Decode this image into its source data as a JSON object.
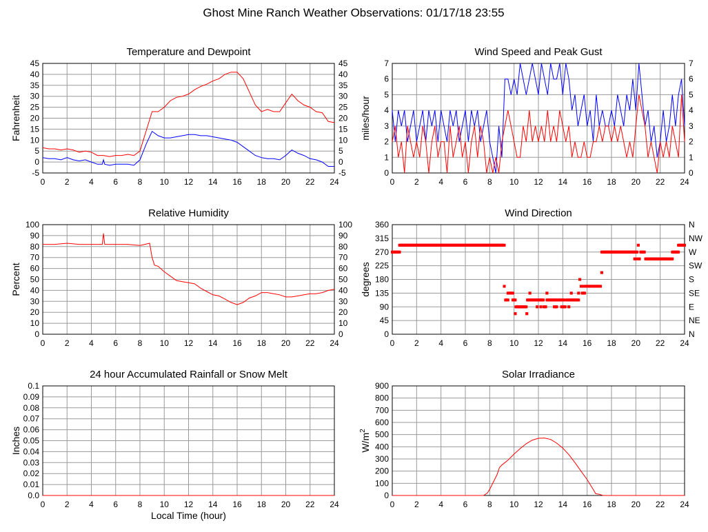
{
  "title": "Ghost Mine Ranch Weather Observations: 01/17/18 23:55",
  "chart_data": [
    {
      "id": "temp",
      "type": "line",
      "title": "Temperature and Dewpoint",
      "ylabel": "Fahrenheit",
      "xlabel": "",
      "xlim": [
        0,
        24
      ],
      "xticks": [
        0,
        2,
        4,
        6,
        8,
        10,
        12,
        14,
        16,
        18,
        20,
        22,
        24
      ],
      "ylim": [
        -5,
        45
      ],
      "yticks": [
        -5,
        0,
        5,
        10,
        15,
        20,
        25,
        30,
        35,
        40,
        45
      ],
      "right_ticks": [
        "-5",
        "0",
        "5",
        "10",
        "15",
        "20",
        "25",
        "30",
        "35",
        "40",
        "45"
      ],
      "grid": true,
      "series": [
        {
          "name": "Temperature",
          "color": "#ff0000",
          "x": [
            0,
            0.5,
            1,
            1.5,
            2,
            2.5,
            3,
            3.5,
            4,
            4.5,
            5,
            5.5,
            6,
            6.5,
            7,
            7.5,
            8,
            8.5,
            9,
            9.5,
            10,
            10.5,
            11,
            11.5,
            12,
            12.5,
            13,
            13.5,
            14,
            14.5,
            15,
            15.5,
            16,
            16.5,
            17,
            17.5,
            18,
            18.5,
            19,
            19.5,
            20,
            20.5,
            21,
            21.5,
            22,
            22.5,
            23,
            23.5,
            24
          ],
          "y": [
            6.5,
            6,
            6,
            5.5,
            6,
            5.5,
            4.5,
            5,
            4.5,
            3,
            3,
            2.5,
            3,
            3,
            3.5,
            3,
            5,
            14,
            23,
            23,
            25,
            28,
            29.5,
            30,
            31,
            33,
            34.5,
            35.5,
            37,
            38,
            40,
            41,
            41,
            38,
            32,
            26,
            23,
            24,
            23,
            23,
            27,
            31,
            28,
            26,
            25,
            23,
            22.5,
            18.5,
            18
          ]
        },
        {
          "name": "Dewpoint",
          "color": "#0000ff",
          "x": [
            0,
            0.5,
            1,
            1.5,
            2,
            2.5,
            3,
            3.5,
            4,
            4.5,
            4.9,
            5,
            5.1,
            5.5,
            6,
            6.5,
            7,
            7.5,
            8,
            8.5,
            9,
            9.5,
            10,
            10.5,
            11,
            11.5,
            12,
            12.5,
            13,
            13.5,
            14,
            14.5,
            15,
            15.5,
            16,
            16.5,
            17,
            17.5,
            18,
            18.5,
            19,
            19.5,
            20,
            20.5,
            21,
            21.5,
            22,
            22.5,
            23,
            23.5,
            24
          ],
          "y": [
            2,
            1.5,
            1.5,
            1,
            2,
            1,
            0.5,
            1,
            0,
            -1,
            -1,
            1,
            -1,
            -1.5,
            -1,
            -1,
            -1,
            -1.5,
            1,
            8,
            14,
            12,
            11,
            11,
            11.5,
            12,
            12.5,
            12.5,
            12,
            12,
            11.5,
            11,
            10.5,
            10,
            9,
            7,
            5,
            3,
            2,
            1.5,
            1.5,
            1,
            3,
            5.5,
            4,
            3,
            1.5,
            1,
            0,
            -2,
            -2
          ]
        }
      ]
    },
    {
      "id": "wind",
      "type": "line",
      "title": "Wind Speed and Peak Gust",
      "ylabel": "miles/hour",
      "xlabel": "",
      "xlim": [
        0,
        24
      ],
      "xticks": [
        0,
        2,
        4,
        6,
        8,
        10,
        12,
        14,
        16,
        18,
        20,
        22,
        24
      ],
      "ylim": [
        0,
        7
      ],
      "yticks": [
        0,
        1,
        2,
        3,
        4,
        5,
        6,
        7
      ],
      "right_ticks": [
        "0",
        "1",
        "2",
        "3",
        "4",
        "5",
        "6",
        "7"
      ],
      "grid": true,
      "x_step": 0.25,
      "series": [
        {
          "name": "Peak Gust",
          "color": "#0000ff",
          "y": [
            4,
            2,
            4,
            3,
            4,
            2,
            3,
            4,
            2,
            3,
            4,
            2,
            4,
            3,
            4,
            2,
            4,
            3,
            2,
            4,
            3,
            4,
            2,
            3,
            4,
            2,
            4,
            3,
            4,
            2,
            3,
            4,
            2,
            1,
            0,
            3,
            1,
            6,
            6,
            5,
            6,
            5,
            7,
            6,
            5,
            6,
            7,
            6,
            5,
            7,
            6,
            5,
            7,
            6,
            6,
            7,
            5,
            7,
            6,
            4,
            5,
            3,
            4,
            5,
            3,
            4,
            2,
            5,
            3,
            4,
            3,
            3,
            4,
            3,
            5,
            4,
            3,
            5,
            4,
            6,
            4,
            7,
            5,
            3,
            4,
            2,
            3,
            1,
            2,
            4,
            2,
            3,
            5,
            3,
            5,
            6,
            3
          ]
        },
        {
          "name": "Wind Speed",
          "color": "#ff0000",
          "y": [
            2,
            3,
            1,
            2,
            0,
            3,
            2,
            1,
            2,
            1,
            3,
            2,
            0,
            2,
            3,
            1,
            2,
            2,
            0,
            3,
            1,
            2,
            3,
            1,
            2,
            0,
            2,
            3,
            1,
            3,
            2,
            0,
            1,
            0,
            1,
            0,
            2,
            3,
            4,
            3,
            2,
            1,
            1,
            3,
            2,
            4,
            2,
            3,
            2,
            3,
            2,
            4,
            2,
            3,
            2,
            4,
            3,
            2,
            3,
            1,
            2,
            1,
            1,
            2,
            1,
            1,
            2,
            2,
            3,
            2,
            3,
            3,
            2,
            3,
            2,
            3,
            2,
            1,
            2,
            1,
            3,
            5,
            4,
            3,
            1,
            2,
            1,
            0,
            2,
            1,
            2,
            1,
            3,
            2,
            1,
            5,
            2
          ]
        }
      ]
    },
    {
      "id": "rh",
      "type": "line",
      "title": "Relative Humidity",
      "ylabel": "Percent",
      "xlabel": "",
      "xlim": [
        0,
        24
      ],
      "xticks": [
        0,
        2,
        4,
        6,
        8,
        10,
        12,
        14,
        16,
        18,
        20,
        22,
        24
      ],
      "ylim": [
        0,
        100
      ],
      "yticks": [
        0,
        10,
        20,
        30,
        40,
        50,
        60,
        70,
        80,
        90,
        100
      ],
      "right_ticks": [
        "0",
        "10",
        "20",
        "30",
        "40",
        "50",
        "60",
        "70",
        "80",
        "90",
        "100"
      ],
      "grid": true,
      "series": [
        {
          "name": "Relative Humidity",
          "color": "#ff0000",
          "x": [
            0,
            1,
            2,
            3,
            4,
            4.9,
            5,
            5.1,
            6,
            7,
            8,
            8.8,
            9,
            9.2,
            9.5,
            10,
            10.5,
            11,
            11.5,
            12,
            12.5,
            13,
            13.5,
            14,
            14.5,
            15,
            15.5,
            16,
            16.5,
            17,
            17.5,
            18,
            18.5,
            19,
            19.5,
            20,
            20.5,
            21,
            21.5,
            22,
            22.5,
            23,
            23.5,
            24
          ],
          "y": [
            82,
            82,
            83,
            82,
            82,
            82,
            92,
            82,
            82,
            82,
            81,
            83,
            70,
            63,
            62,
            57,
            53,
            49,
            48,
            47,
            46,
            42,
            39,
            36,
            35,
            32,
            29,
            27,
            29,
            33,
            35,
            38,
            38,
            37,
            36,
            34,
            34,
            35,
            36,
            37,
            37,
            38,
            40,
            41
          ]
        }
      ]
    },
    {
      "id": "dir",
      "type": "scatter",
      "title": "Wind Direction",
      "ylabel": "degrees",
      "xlabel": "",
      "xlim": [
        0,
        24
      ],
      "xticks": [
        0,
        2,
        4,
        6,
        8,
        10,
        12,
        14,
        16,
        18,
        20,
        22,
        24
      ],
      "ylim": [
        0,
        360
      ],
      "yticks": [
        0,
        45,
        90,
        135,
        180,
        225,
        270,
        315,
        360
      ],
      "right_ticks": [
        "N",
        "NE",
        "E",
        "SE",
        "S",
        "SW",
        "W",
        "NW",
        "N"
      ],
      "grid": true,
      "color": "#ff0000",
      "segments": [
        [
          0,
          0.6,
          270
        ],
        [
          0.6,
          9.2,
          292.5
        ],
        [
          9.2,
          9.2,
          157.5
        ],
        [
          9.3,
          9.5,
          112.5
        ],
        [
          9.5,
          9.9,
          135
        ],
        [
          9.9,
          10.1,
          112.5
        ],
        [
          10.1,
          10.1,
          67.5
        ],
        [
          10.15,
          11,
          90
        ],
        [
          11.05,
          11.05,
          67.5
        ],
        [
          11.1,
          12.4,
          112.5
        ],
        [
          11.3,
          11.3,
          135
        ],
        [
          11.9,
          11.9,
          90
        ],
        [
          12.2,
          12.2,
          90
        ],
        [
          12.45,
          12.6,
          90
        ],
        [
          12.7,
          12.7,
          135
        ],
        [
          12.7,
          13.5,
          112.5
        ],
        [
          13.3,
          13.5,
          90
        ],
        [
          13.6,
          14.1,
          112.5
        ],
        [
          13.9,
          14.2,
          90
        ],
        [
          14.3,
          15.3,
          112.5
        ],
        [
          14.5,
          14.5,
          90
        ],
        [
          14.7,
          14.7,
          135
        ],
        [
          15.3,
          15.3,
          135
        ],
        [
          15.4,
          15.4,
          180
        ],
        [
          15.5,
          15.6,
          157.5
        ],
        [
          15.6,
          15.8,
          135
        ],
        [
          15.8,
          17.1,
          157.5
        ],
        [
          17.2,
          17.2,
          202.5
        ],
        [
          17.2,
          20.1,
          270
        ],
        [
          19.9,
          20,
          247.5
        ],
        [
          20.2,
          20.2,
          292.5
        ],
        [
          20.2,
          20.3,
          247.5
        ],
        [
          20.4,
          20.7,
          270
        ],
        [
          20.8,
          23,
          247.5
        ],
        [
          23,
          23.5,
          270
        ],
        [
          23.5,
          24,
          292.5
        ]
      ]
    },
    {
      "id": "rain",
      "type": "line",
      "title": "24 hour Accumulated Rainfall or Snow Melt",
      "ylabel": "Inches",
      "xlabel": "Local Time (hour)",
      "xlim": [
        0,
        24
      ],
      "xticks": [
        0,
        2,
        4,
        6,
        8,
        10,
        12,
        14,
        16,
        18,
        20,
        22,
        24
      ],
      "ylim": [
        0,
        0.1
      ],
      "yticks": [
        0,
        0.01,
        0.02,
        0.03,
        0.04,
        0.05,
        0.06,
        0.07,
        0.08,
        0.09,
        0.1
      ],
      "ytick_labels": [
        "0.0",
        "0.01",
        "0.02",
        "0.03",
        "0.04",
        "0.05",
        "0.06",
        "0.07",
        "0.08",
        "0.09",
        "0.1"
      ],
      "grid": true,
      "series": [
        {
          "name": "Rainfall",
          "color": "#ff0000",
          "x": [
            0,
            24
          ],
          "y": [
            0,
            0
          ]
        }
      ]
    },
    {
      "id": "solar",
      "type": "line",
      "title": "Solar Irradiance",
      "ylabel": "W/m",
      "ylabel_sup": "2",
      "xlabel": "",
      "xlim": [
        0,
        24
      ],
      "xticks": [
        0,
        2,
        4,
        6,
        8,
        10,
        12,
        14,
        16,
        18,
        20,
        22,
        24
      ],
      "ylim": [
        0,
        900
      ],
      "yticks": [
        0,
        100,
        200,
        300,
        400,
        500,
        600,
        700,
        800,
        900
      ],
      "grid": true,
      "series": [
        {
          "name": "Solar Irradiance",
          "color": "#ff0000",
          "x": [
            0,
            7.5,
            7.8,
            8,
            8.3,
            8.6,
            8.8,
            9,
            9.5,
            10,
            10.5,
            11,
            11.5,
            12,
            12.5,
            13,
            13.5,
            14,
            14.5,
            15,
            15.5,
            16,
            16.5,
            16.7,
            17,
            17.3,
            24
          ],
          "y": [
            0,
            0,
            20,
            50,
            110,
            170,
            230,
            250,
            290,
            340,
            385,
            425,
            455,
            470,
            472,
            460,
            430,
            390,
            335,
            270,
            200,
            130,
            50,
            15,
            10,
            0,
            0
          ]
        }
      ]
    }
  ]
}
